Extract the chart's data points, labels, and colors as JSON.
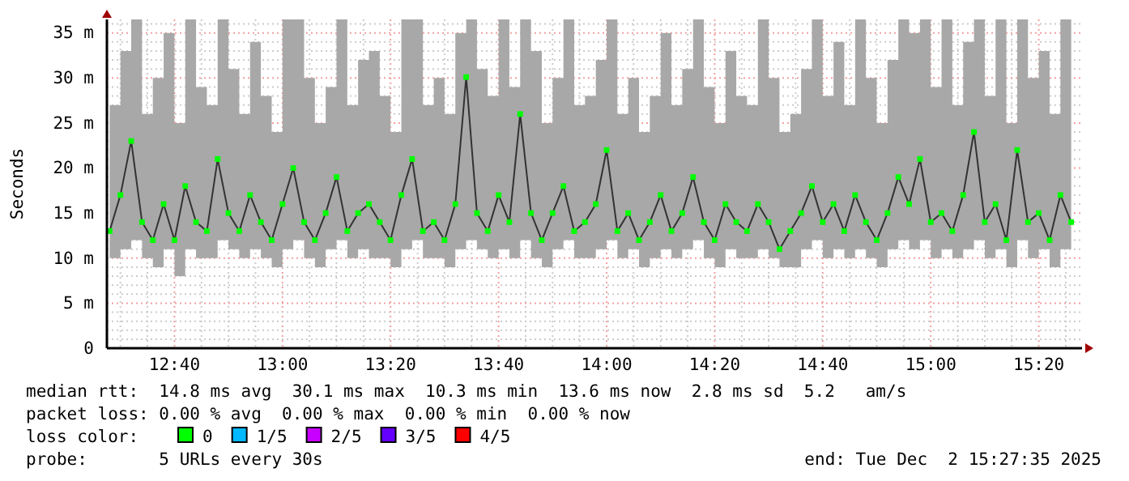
{
  "chart_data": {
    "type": "line",
    "ylabel": "Seconds",
    "xlim": [
      12.4583,
      15.4667
    ],
    "ylim": [
      0,
      36.5
    ],
    "xticks": [
      {
        "value": 12.5,
        "label": null
      },
      {
        "value": 12.5833,
        "label": null
      },
      {
        "value": 12.6667,
        "label": "12:40"
      },
      {
        "value": 12.75,
        "label": null
      },
      {
        "value": 12.8333,
        "label": null
      },
      {
        "value": 12.9167,
        "label": null
      },
      {
        "value": 13,
        "label": "13:00"
      },
      {
        "value": 13.0833,
        "label": null
      },
      {
        "value": 13.1667,
        "label": null
      },
      {
        "value": 13.25,
        "label": null
      },
      {
        "value": 13.3333,
        "label": "13:20"
      },
      {
        "value": 13.4167,
        "label": null
      },
      {
        "value": 13.5,
        "label": null
      },
      {
        "value": 13.5833,
        "label": null
      },
      {
        "value": 13.6667,
        "label": "13:40"
      },
      {
        "value": 13.75,
        "label": null
      },
      {
        "value": 13.8333,
        "label": null
      },
      {
        "value": 13.9167,
        "label": null
      },
      {
        "value": 14,
        "label": "14:00"
      },
      {
        "value": 14.0833,
        "label": null
      },
      {
        "value": 14.1667,
        "label": null
      },
      {
        "value": 14.25,
        "label": null
      },
      {
        "value": 14.3333,
        "label": "14:20"
      },
      {
        "value": 14.4167,
        "label": null
      },
      {
        "value": 14.5,
        "label": null
      },
      {
        "value": 14.5833,
        "label": null
      },
      {
        "value": 14.6667,
        "label": "14:40"
      },
      {
        "value": 14.75,
        "label": null
      },
      {
        "value": 14.8333,
        "label": null
      },
      {
        "value": 14.9167,
        "label": null
      },
      {
        "value": 15,
        "label": "15:00"
      },
      {
        "value": 15.0833,
        "label": null
      },
      {
        "value": 15.1667,
        "label": null
      },
      {
        "value": 15.25,
        "label": null
      },
      {
        "value": 15.3333,
        "label": "15:20"
      },
      {
        "value": 15.4167,
        "label": null
      }
    ],
    "yticks": [
      0,
      {
        "value": 1,
        "label": null
      },
      {
        "value": 2,
        "label": null
      },
      {
        "value": 3,
        "label": null
      },
      {
        "value": 4,
        "label": null
      },
      {
        "value": 5,
        "label": "5 m"
      },
      {
        "value": 6,
        "label": null
      },
      {
        "value": 7,
        "label": null
      },
      {
        "value": 8,
        "label": null
      },
      {
        "value": 9,
        "label": null
      },
      {
        "value": 10,
        "label": "10 m"
      },
      {
        "value": 11,
        "label": null
      },
      {
        "value": 12,
        "label": null
      },
      {
        "value": 13,
        "label": null
      },
      {
        "value": 14,
        "label": null
      },
      {
        "value": 15,
        "label": "15 m"
      },
      {
        "value": 16,
        "label": null
      },
      {
        "value": 17,
        "label": null
      },
      {
        "value": 18,
        "label": null
      },
      {
        "value": 19,
        "label": null
      },
      {
        "value": 20,
        "label": "20 m"
      },
      {
        "value": 21,
        "label": null
      },
      {
        "value": 22,
        "label": null
      },
      {
        "value": 23,
        "label": null
      },
      {
        "value": 24,
        "label": null
      },
      {
        "value": 25,
        "label": "25 m"
      },
      {
        "value": 26,
        "label": null
      },
      {
        "value": 27,
        "label": null
      },
      {
        "value": 28,
        "label": null
      },
      {
        "value": 29,
        "label": null
      },
      {
        "value": 30,
        "label": "30 m"
      },
      {
        "value": 31,
        "label": null
      },
      {
        "value": 32,
        "label": null
      },
      {
        "value": 33,
        "label": null
      },
      {
        "value": 34,
        "label": null
      },
      {
        "value": 35,
        "label": "35 m"
      },
      {
        "value": 36,
        "label": null
      }
    ],
    "grid": true,
    "marker": "square",
    "legend": "bottom",
    "series": [
      {
        "name": "0",
        "color": "#00ff00",
        "x": [
          12.4667,
          12.5,
          12.5333,
          12.5667,
          12.6,
          12.6333,
          12.6667,
          12.7,
          12.7333,
          12.7667,
          12.8,
          12.8333,
          12.8667,
          12.9,
          12.9333,
          12.9667,
          13,
          13.0333,
          13.0667,
          13.1,
          13.1333,
          13.1667,
          13.2,
          13.2333,
          13.2667,
          13.3,
          13.3333,
          13.3667,
          13.4,
          13.4333,
          13.4667,
          13.5,
          13.5333,
          13.5667,
          13.6,
          13.6333,
          13.6667,
          13.7,
          13.7333,
          13.7667,
          13.8,
          13.8333,
          13.8667,
          13.9,
          13.9333,
          13.9667,
          14,
          14.0333,
          14.0667,
          14.1,
          14.1333,
          14.1667,
          14.2,
          14.2333,
          14.2667,
          14.3,
          14.3333,
          14.3667,
          14.4,
          14.4333,
          14.4667,
          14.5,
          14.5333,
          14.5667,
          14.6,
          14.6333,
          14.6667,
          14.7,
          14.7333,
          14.7667,
          14.8,
          14.8333,
          14.8667,
          14.9,
          14.9333,
          14.9667,
          15,
          15.0333,
          15.0667,
          15.1,
          15.1333,
          15.1667,
          15.2,
          15.2333,
          15.2667,
          15.3,
          15.3333,
          15.3667,
          15.4,
          15.4333
        ],
        "values": [
          13,
          17,
          23,
          14,
          12,
          16,
          12,
          18,
          14,
          13,
          21,
          15,
          13,
          17,
          14,
          12,
          16,
          20,
          14,
          12,
          15,
          19,
          13,
          15,
          16,
          14,
          12,
          17,
          21,
          13,
          14,
          12,
          16,
          30.1,
          15,
          13,
          17,
          14,
          26,
          15,
          12,
          15,
          18,
          13,
          14,
          16,
          22,
          13,
          15,
          12,
          14,
          17,
          13,
          15,
          19,
          14,
          12,
          16,
          14,
          13,
          16,
          14,
          11,
          13,
          15,
          18,
          14,
          16,
          13,
          17,
          14,
          12,
          15,
          19,
          16,
          21,
          14,
          15,
          13,
          17,
          24,
          14,
          16,
          12,
          22,
          14,
          15,
          12,
          17,
          14
        ],
        "lower": [
          10,
          11,
          12,
          10,
          9,
          11,
          8,
          11,
          10,
          10,
          12,
          11,
          10,
          11,
          10,
          9,
          11,
          12,
          10,
          9,
          11,
          12,
          10,
          11,
          10,
          10,
          9,
          11,
          12,
          10,
          10,
          9,
          11,
          12,
          11,
          10,
          11,
          10,
          12,
          10,
          9,
          11,
          12,
          10,
          10,
          11,
          12,
          10,
          11,
          9,
          10,
          11,
          10,
          11,
          12,
          10,
          9,
          11,
          10,
          10,
          11,
          10,
          9,
          9,
          11,
          12,
          10,
          11,
          10,
          11,
          10,
          9,
          11,
          12,
          11,
          12,
          10,
          11,
          10,
          11,
          12,
          10,
          11,
          9,
          12,
          10,
          11,
          9,
          11,
          10
        ],
        "upper": [
          27,
          33,
          36.5,
          26,
          30,
          35,
          25,
          36.5,
          29,
          27,
          36.5,
          31,
          26,
          34,
          28,
          24,
          36.5,
          36.5,
          30,
          25,
          29,
          36.5,
          27,
          32,
          33,
          28,
          24,
          36.5,
          36.5,
          27,
          30,
          26,
          35,
          36.5,
          31,
          28,
          36.5,
          29,
          36.5,
          33,
          25,
          30,
          36.5,
          27,
          28,
          32,
          36.5,
          26,
          30,
          24,
          28,
          35,
          27,
          31,
          36.5,
          29,
          25,
          33,
          28,
          27,
          36.5,
          30,
          24,
          26,
          31,
          36.5,
          28,
          34,
          27,
          36.5,
          30,
          25,
          32,
          36.5,
          35,
          36.5,
          29,
          36.5,
          27,
          34,
          36.5,
          28,
          36.5,
          25,
          36.5,
          30,
          33,
          26,
          36.5,
          29
        ]
      },
      {
        "name": "1/5",
        "color": "#00b8ff"
      },
      {
        "name": "2/5",
        "color": "#c800ff"
      },
      {
        "name": "3/5",
        "color": "#6400ff"
      },
      {
        "name": "4/5",
        "color": "#ff0000"
      }
    ],
    "annotations": [
      "median rtt:  14.8 ms avg  30.1 ms max  10.3 ms min  13.6 ms now  2.8 ms sd  5.2   am/s",
      "packet loss: 0.00 % avg  0.00 % max  0.00 % min  0.00 % now",
      "loss color:",
      "probe:       5 URLs every 30s",
      "end: Tue Dec  2 15:27:35 2025"
    ]
  }
}
